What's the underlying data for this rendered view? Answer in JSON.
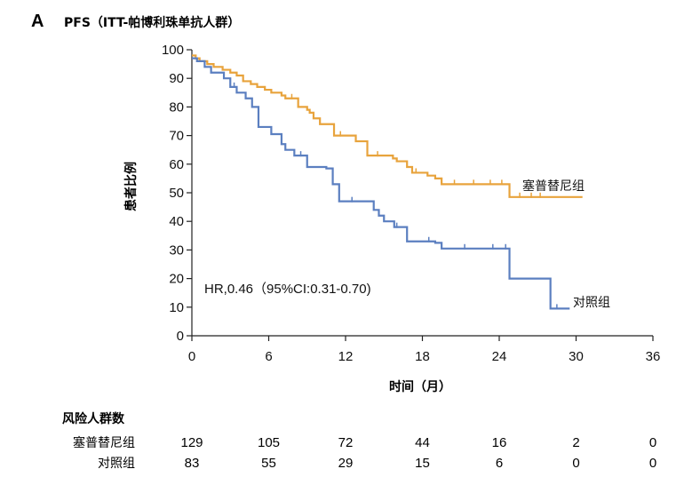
{
  "panel_letter": "A",
  "chart_data": {
    "type": "line",
    "title": "PFS（ITT-帕博利珠单抗人群）",
    "xlabel": "时间（月）",
    "ylabel": "患者比例",
    "xlim": [
      0,
      36
    ],
    "ylim": [
      0,
      100
    ],
    "xticks": [
      0,
      6,
      12,
      18,
      24,
      30,
      36
    ],
    "yticks": [
      0,
      10,
      20,
      30,
      40,
      50,
      60,
      70,
      80,
      90,
      100
    ],
    "annotation": "HR,0.46（95%CI:0.31-0.70)",
    "series": [
      {
        "name": "塞普替尼组",
        "color": "#E8A33C",
        "x": [
          0,
          0.3,
          0.6,
          1.2,
          1.7,
          2.4,
          3.0,
          3.5,
          4.0,
          4.6,
          5.1,
          5.7,
          6.2,
          7.0,
          7.3,
          8.3,
          9.0,
          9.2,
          9.5,
          10.0,
          11.1,
          12.8,
          13.7,
          15.7,
          16.0,
          16.8,
          17.2,
          18.4,
          19.0,
          19.5,
          20.0,
          24.5,
          24.8,
          30.5
        ],
        "y": [
          98,
          97,
          96,
          95,
          94,
          93,
          92,
          91,
          89,
          88,
          87,
          86,
          85,
          84,
          83,
          80,
          79,
          78,
          76,
          74,
          70,
          68,
          63,
          62,
          61,
          59,
          57,
          56,
          55,
          53,
          53,
          53,
          48.5,
          48.5
        ],
        "censor_x": [
          7.8,
          11.6,
          14.5,
          17.5,
          20.5,
          22.0,
          23.3,
          24.2,
          25.6,
          26.5,
          27.2
        ]
      },
      {
        "name": "对照组",
        "color": "#5B7FC0",
        "x": [
          0,
          0.4,
          1.0,
          1.5,
          2.5,
          3.0,
          3.5,
          4.2,
          4.7,
          5.2,
          6.2,
          7.0,
          7.3,
          8.0,
          9.0,
          10.5,
          11.0,
          11.5,
          14.2,
          14.6,
          15.0,
          15.8,
          16.8,
          19.0,
          19.5,
          24.8,
          28.0,
          29.5
        ],
        "y": [
          97,
          96,
          94,
          92,
          90,
          87,
          85,
          83,
          80,
          73,
          70.5,
          67,
          65,
          63,
          59,
          58.5,
          53,
          47,
          44,
          42,
          40,
          38,
          33,
          32.5,
          30.5,
          20,
          9.5,
          9.5
        ],
        "censor_x": [
          3.3,
          8.5,
          12.5,
          16.0,
          18.5,
          21.3,
          23.5,
          24.5,
          28.5
        ]
      }
    ]
  },
  "risk_table": {
    "title": "风险人群数",
    "timepoints": [
      0,
      6,
      12,
      18,
      24,
      30,
      36
    ],
    "rows": [
      {
        "label": "塞普替尼组",
        "values": [
          "129",
          "105",
          "72",
          "44",
          "16",
          "2",
          "0"
        ]
      },
      {
        "label": "对照组",
        "values": [
          "83",
          "55",
          "29",
          "15",
          "6",
          "0",
          "0"
        ]
      }
    ]
  }
}
